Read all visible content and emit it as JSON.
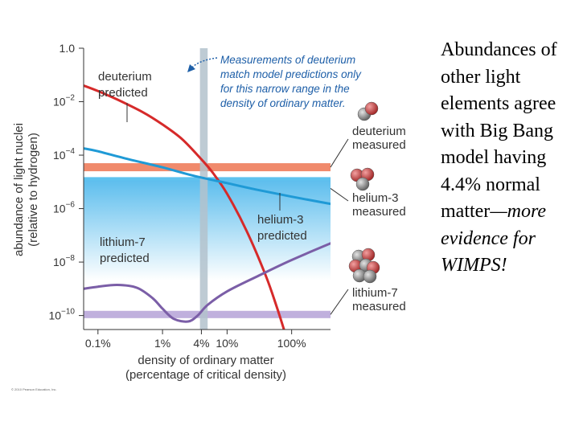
{
  "chart_data": {
    "type": "line",
    "xscale": "log",
    "yscale": "log",
    "xlabel_lines": [
      "density of ordinary matter",
      "(percentage of critical density)"
    ],
    "ylabel_lines": [
      "abundance of light nuclei",
      "(relative to hydrogen)"
    ],
    "xlim": [
      0.06,
      400
    ],
    "ylim": [
      3e-11,
      1.0
    ],
    "x_ticks": [
      {
        "value": 0.1,
        "label": "0.1%"
      },
      {
        "value": 1,
        "label": "1%"
      },
      {
        "value": 4,
        "label": "4%"
      },
      {
        "value": 10,
        "label": "10%"
      },
      {
        "value": 100,
        "label": "100%"
      }
    ],
    "y_ticks": [
      {
        "value": 1.0,
        "base": "1.0",
        "exp": ""
      },
      {
        "value": 0.01,
        "base": "10",
        "exp": "−2"
      },
      {
        "value": 0.0001,
        "base": "10",
        "exp": "−4"
      },
      {
        "value": 1e-06,
        "base": "10",
        "exp": "−6"
      },
      {
        "value": 1e-08,
        "base": "10",
        "exp": "−8"
      },
      {
        "value": 1e-10,
        "base": "10",
        "exp": "−10"
      }
    ],
    "series": [
      {
        "key": "deuterium",
        "color": "#d62a2a",
        "x": [
          0.06,
          0.1,
          0.2,
          0.5,
          1,
          2,
          4,
          6,
          10,
          20,
          40,
          60,
          80,
          100
        ],
        "y": [
          0.04,
          0.025,
          0.012,
          0.004,
          0.0014,
          0.0004,
          7e-05,
          2.2e-05,
          3.6e-06,
          1.5e-07,
          3e-09,
          1.8e-10,
          2e-11,
          3e-12
        ]
      },
      {
        "key": "helium-3",
        "color": "#1f9ad6",
        "x": [
          0.06,
          0.1,
          0.3,
          1,
          3,
          10,
          30,
          100,
          400
        ],
        "y": [
          0.00018,
          0.00014,
          7e-05,
          3.5e-05,
          1.7e-05,
          9e-06,
          5e-06,
          2.8e-06,
          1.5e-06
        ]
      },
      {
        "key": "lithium-7",
        "color": "#7b5ea7",
        "x": [
          0.06,
          0.1,
          0.2,
          0.4,
          0.7,
          1,
          1.5,
          2.5,
          3.5,
          5,
          10,
          30,
          100,
          400
        ],
        "y": [
          1e-09,
          1.2e-09,
          1.4e-09,
          1.1e-09,
          4.5e-10,
          1.8e-10,
          7.5e-11,
          6e-11,
          1e-10,
          2.5e-10,
          8e-10,
          3e-09,
          1.2e-08,
          5e-08
        ]
      }
    ],
    "measured_bands": [
      {
        "key": "deuterium",
        "ymin": 2.5e-05,
        "ymax": 5e-05,
        "color": "#f08a6c"
      },
      {
        "key": "helium-3",
        "ymin": 2e-09,
        "ymax": 1.5e-05,
        "color": "#5fc2ee"
      },
      {
        "key": "lithium-7",
        "ymin": 8e-11,
        "ymax": 1.5e-10,
        "color": "#c0b0dd"
      }
    ],
    "density_band": {
      "xmin": 3.8,
      "xmax": 5.0,
      "color": "#b3c2cc"
    },
    "annotation_lines": [
      "Measurements of deuterium",
      "match model predictions only",
      "for this narrow range in the",
      "density of ordinary matter."
    ],
    "annotation_color": "#1e5fa8",
    "predicted_labels": {
      "deuterium": [
        "deuterium",
        "predicted"
      ],
      "helium-3": [
        "helium-3",
        "predicted"
      ],
      "lithium-7": [
        "lithium-7",
        "predicted"
      ]
    },
    "measured_labels": {
      "deuterium": [
        "deuterium",
        "measured"
      ],
      "helium-3": [
        "helium-3",
        "measured"
      ],
      "lithium-7": [
        "lithium-7",
        "measured"
      ]
    },
    "copyright": "© 2010 Pearson Education, Inc."
  },
  "caption": {
    "normal": "Abundances of other light elements agree with Big Bang model having 4.4% normal matter",
    "emph": "—more evidence for WIMPS!"
  }
}
